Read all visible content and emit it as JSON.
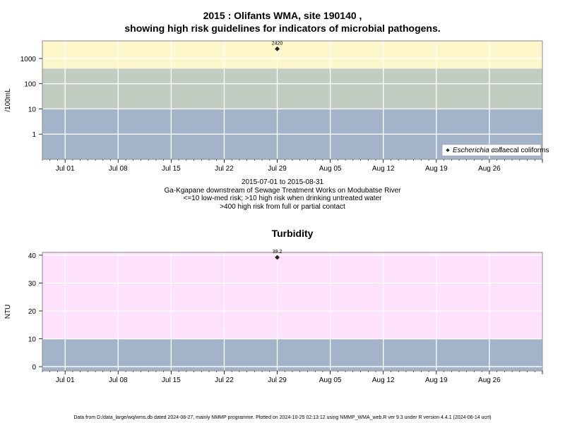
{
  "page": {
    "title_line1": "2015 : Olifants WMA, site 190140 ,",
    "title_line2": "showing high risk guidelines for indicators of microbial pathogens.",
    "caption_lines": [
      "2015-07-01 to 2015-08-31",
      "Ga-Kgapane downstream of Sewage Treatment Works on Modubatse River",
      "<=10 low-med risk; >10 high risk when drinking untreated water",
      ">400 high risk from full or partial contact"
    ],
    "footer": "Data from D:/data_large/wq/wms.db dated 2024-08-27, mainly NMMP programme. Plotted on 2024-10-25 02:13:12 using NMMP_WMA_web.R ver 9.3 under R version 4.4.1 (2024-06-14 ucrt)"
  },
  "chart_data": [
    {
      "type": "scatter",
      "title": "2015 : Olifants WMA, site 190140 , showing high risk guidelines for indicators of microbial pathogens.",
      "ylabel": "/100mL",
      "xlabel": "",
      "x_ticks": [
        "Jul 01",
        "Jul 08",
        "Jul 15",
        "Jul 22",
        "Jul 29",
        "Aug 05",
        "Aug 12",
        "Aug 19",
        "Aug 26"
      ],
      "y_scale": "log",
      "y_ticks": [
        "1",
        "10",
        "100",
        "1000"
      ],
      "y_tick_values": [
        1,
        10,
        100,
        1000
      ],
      "ylim": [
        0.1,
        5000
      ],
      "xlim": [
        "2015-06-28",
        "2015-09-02"
      ],
      "bands": [
        {
          "from": 0.1,
          "to": 10,
          "color": "#a3b4ca"
        },
        {
          "from": 10,
          "to": 400,
          "color": "#c2cdc2"
        },
        {
          "from": 400,
          "to": 5000,
          "color": "#fef7cb"
        }
      ],
      "series": [
        {
          "name": "Escherichia coli",
          "marker": "filled-diamond",
          "points": [
            {
              "x": "2015-07-29",
              "y": 2420,
              "label": "2420"
            }
          ]
        },
        {
          "name": "faecal coliforms",
          "marker": "open-diamond",
          "points": []
        }
      ],
      "legend": {
        "position": "bottom-right"
      },
      "grid": true
    },
    {
      "type": "scatter",
      "title": "Turbidity",
      "ylabel": "NTU",
      "xlabel": "",
      "x_ticks": [
        "Jul 01",
        "Jul 08",
        "Jul 15",
        "Jul 22",
        "Jul 29",
        "Aug 05",
        "Aug 12",
        "Aug 19",
        "Aug 26"
      ],
      "y_ticks": [
        "0",
        "10",
        "20",
        "30",
        "40"
      ],
      "y_tick_values": [
        0,
        10,
        20,
        30,
        40
      ],
      "ylim": [
        -1.5,
        41
      ],
      "xlim": [
        "2015-06-28",
        "2015-09-02"
      ],
      "bands": [
        {
          "from": -1.5,
          "to": 10,
          "color": "#a3b4ca"
        },
        {
          "from": 10,
          "to": 41,
          "color": "#fde1fd"
        }
      ],
      "series": [
        {
          "marker": "filled-diamond",
          "points": [
            {
              "x": "2015-07-29",
              "y": 39.2,
              "label": "39.2"
            }
          ]
        }
      ],
      "grid": true
    }
  ]
}
